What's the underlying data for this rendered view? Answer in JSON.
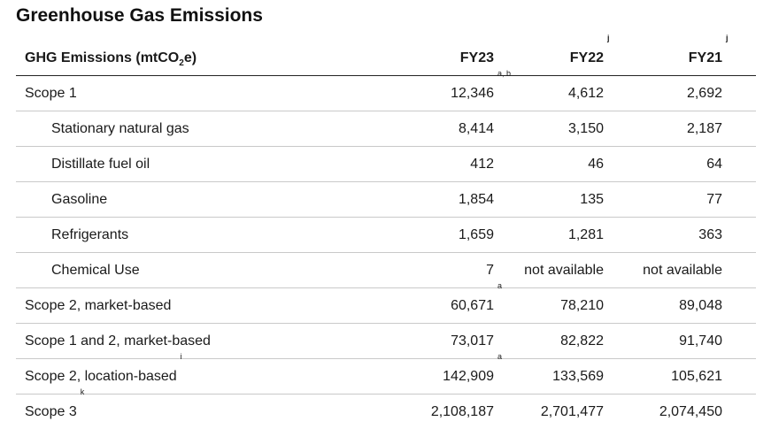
{
  "title": "Greenhouse Gas Emissions",
  "header": {
    "col0_prefix": "GHG Emissions (mtCO",
    "col0_sub": "2",
    "col0_suffix": "e)",
    "col1": "FY23",
    "col2": "FY22",
    "col2_fn": "j",
    "col3": "FY21",
    "col3_fn": "j"
  },
  "rows": [
    {
      "label": "Scope 1",
      "label_fn": "",
      "indent": false,
      "fy23": "12,346",
      "fy23_fn": "a, b",
      "fy22": "4,612",
      "fy21": "2,692"
    },
    {
      "label": "Stationary natural gas",
      "label_fn": "",
      "indent": true,
      "fy23": "8,414",
      "fy23_fn": "",
      "fy22": "3,150",
      "fy21": "2,187"
    },
    {
      "label": "Distillate fuel oil",
      "label_fn": "",
      "indent": true,
      "fy23": "412",
      "fy23_fn": "",
      "fy22": "46",
      "fy21": "64"
    },
    {
      "label": "Gasoline",
      "label_fn": "",
      "indent": true,
      "fy23": "1,854",
      "fy23_fn": "",
      "fy22": "135",
      "fy21": "77"
    },
    {
      "label": "Refrigerants",
      "label_fn": "",
      "indent": true,
      "fy23": "1,659",
      "fy23_fn": "",
      "fy22": "1,281",
      "fy21": "363"
    },
    {
      "label": "Chemical Use",
      "label_fn": "",
      "indent": true,
      "fy23": "7",
      "fy23_fn": "",
      "fy22": "not available",
      "fy21": "not available"
    },
    {
      "label": "Scope 2, market-based",
      "label_fn": "",
      "indent": false,
      "fy23": "60,671",
      "fy23_fn": "a",
      "fy22": "78,210",
      "fy21": "89,048"
    },
    {
      "label": "Scope 1 and 2, market-based",
      "label_fn": "",
      "indent": false,
      "fy23": "73,017",
      "fy23_fn": "",
      "fy22": "82,822",
      "fy21": "91,740"
    },
    {
      "label": "Scope 2, location-based",
      "label_fn": "i",
      "indent": false,
      "fy23": "142,909",
      "fy23_fn": "a",
      "fy22": "133,569",
      "fy21": "105,621"
    },
    {
      "label": "Scope 3",
      "label_fn": "k",
      "indent": false,
      "fy23": "2,108,187",
      "fy23_fn": "",
      "fy22": "2,701,477",
      "fy21": "2,074,450"
    }
  ]
}
